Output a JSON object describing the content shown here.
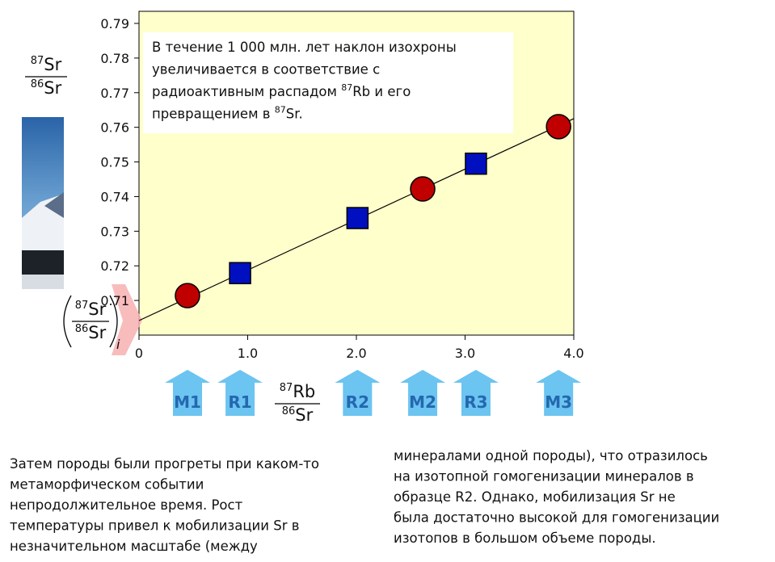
{
  "chart_data": {
    "type": "scatter",
    "annotation": [
      [
        "В течение 1 000 млн. лет наклон изохроны"
      ],
      [
        "увеличивается в соответствие с"
      ],
      [
        "радиоактивным распадом ",
        "87",
        "Rb и его"
      ],
      [
        "превращением в ",
        "87",
        "Sr."
      ]
    ],
    "ylabel": {
      "numerator": [
        "87",
        "Sr"
      ],
      "denominator": [
        "86",
        "Sr"
      ]
    },
    "xlabel": {
      "numerator": [
        "87",
        "Rb"
      ],
      "denominator": [
        "86",
        "Sr"
      ]
    },
    "initial_ratio_label": {
      "numerator": [
        "87",
        "Sr"
      ],
      "denominator": [
        "86",
        "Sr"
      ],
      "subscript": "i"
    },
    "xlim": [
      0,
      4.0
    ],
    "ylim": [
      0.7,
      0.7935
    ],
    "xticks": [
      0,
      {
        "value": 1.0,
        "label": "1.0"
      },
      {
        "value": 2.0,
        "label": "2.0"
      },
      {
        "value": 3.0,
        "label": "3.0"
      },
      {
        "value": 4.0,
        "label": "4.0"
      }
    ],
    "yticks": [
      0.71,
      0.72,
      0.73,
      0.74,
      0.75,
      0.76,
      0.77,
      0.78,
      0.79
    ],
    "grid": false,
    "isochron": {
      "x": [
        0,
        4.0
      ],
      "values": [
        0.7042,
        0.7625
      ],
      "color": "#000000"
    },
    "series": [
      {
        "marker": "circle",
        "color": "#c00000",
        "x": [
          0.446,
          2.61,
          3.86
        ],
        "values": [
          0.7114,
          0.7422,
          0.7602
        ],
        "labels": [
          "M1",
          "M2",
          "M3"
        ]
      },
      {
        "marker": "square",
        "color": "#0010c0",
        "x": [
          0.93,
          2.01,
          3.1
        ],
        "values": [
          0.7179,
          0.7338,
          0.7495
        ],
        "labels": [
          "R1",
          "R2",
          "R3"
        ]
      }
    ],
    "text_columns": [
      [
        "Затем породы были прогреты при каком-то",
        "метаморфическом событии",
        "непродолжительное время. Рост",
        "температуры привел к мобилизации Sr в",
        "незначительном масштабе (между"
      ],
      [
        "минералами одной породы), что отразилось",
        "на изотопной гомогенизации минералов в",
        "образце R2. Однако, мобилизация Sr не",
        "была достаточно высокой для гомогенизации",
        "изотопов в большом объеме породы."
      ]
    ]
  }
}
